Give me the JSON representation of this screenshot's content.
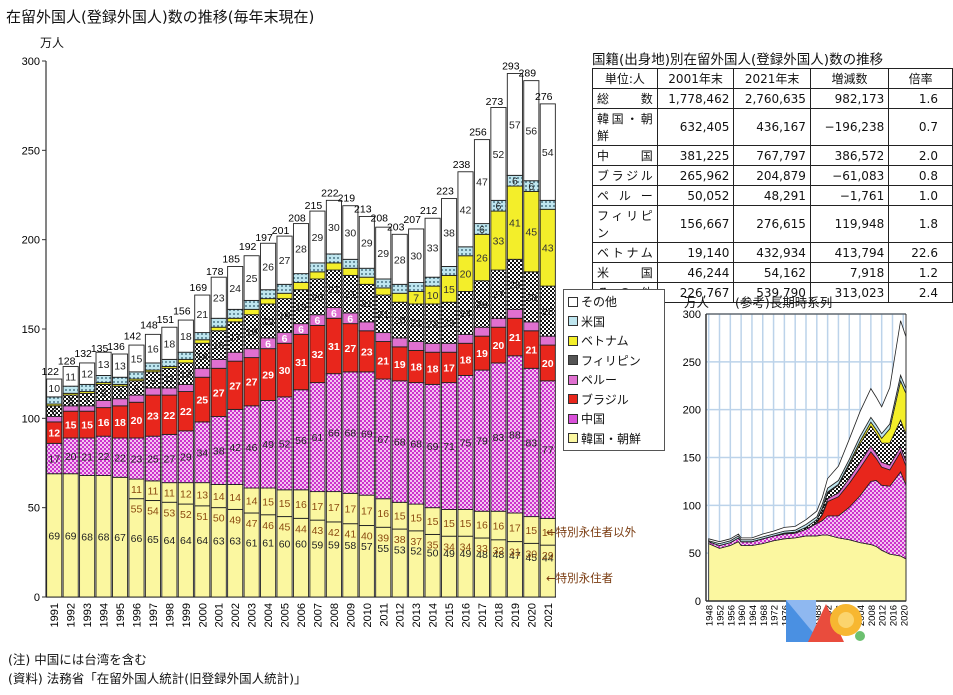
{
  "page": {
    "title": "在留外国人(登録外国人)数の推移(毎年末現在)",
    "unit": "万人",
    "notes": [
      "(注) 中国には台湾を含む",
      "(資料) 法務省「在留外国人統計(旧登録外国人統計)」"
    ],
    "annotations": {
      "special_other": "←特別永住者以外",
      "special": "←特別永住者"
    }
  },
  "table": {
    "title": "国籍(出身地)別在留外国人(登録外国人)数の推移",
    "headers": [
      "単位:人",
      "2001年末",
      "2021年末",
      "増減数",
      "倍率"
    ],
    "rows": [
      [
        "総数",
        "1,778,462",
        "2,760,635",
        "982,173",
        "1.6"
      ],
      [
        "韓国・朝鮮",
        "632,405",
        "436,167",
        "−196,238",
        "0.7"
      ],
      [
        "中国",
        "381,225",
        "767,797",
        "386,572",
        "2.0"
      ],
      [
        "ブラジル",
        "265,962",
        "204,879",
        "−61,083",
        "0.8"
      ],
      [
        "ペルー",
        "50,052",
        "48,291",
        "−1,761",
        "1.0"
      ],
      [
        "フィリピン",
        "156,667",
        "276,615",
        "119,948",
        "1.8"
      ],
      [
        "ベトナム",
        "19,140",
        "432,934",
        "413,794",
        "22.6"
      ],
      [
        "米国",
        "46,244",
        "54,162",
        "7,918",
        "1.2"
      ],
      [
        "その他",
        "226,767",
        "539,790",
        "313,023",
        "2.4"
      ]
    ]
  },
  "legend": {
    "items": [
      {
        "label": "その他",
        "key": "other"
      },
      {
        "label": "米国",
        "key": "usa"
      },
      {
        "label": "ベトナム",
        "key": "vietnam"
      },
      {
        "label": "フィリピン",
        "key": "philippines"
      },
      {
        "label": "ペルー",
        "key": "peru"
      },
      {
        "label": "ブラジル",
        "key": "brazil"
      },
      {
        "label": "中国",
        "key": "china"
      },
      {
        "label": "韓国・朝鮮",
        "key": "korea"
      }
    ]
  },
  "colors": {
    "korea": "#fbf7a0",
    "china": "#d94fd9",
    "brazil": "#e8261c",
    "peru": "#e070d0",
    "philippines": "#222222",
    "vietnam": "#f3ee2a",
    "usa": "#bfe6ef",
    "other": "#ffffff",
    "grid": "#bcd3ea"
  },
  "chart_data": [
    {
      "type": "bar",
      "stacked": true,
      "title": "在留外国人(登録外国人)数の推移(毎年末現在)",
      "ylabel": "万人",
      "ylim": [
        0,
        300
      ],
      "yticks": [
        0,
        50,
        100,
        150,
        200,
        250,
        300
      ],
      "categories": [
        "1991",
        "1992",
        "1993",
        "1994",
        "1995",
        "1996",
        "1997",
        "1998",
        "1999",
        "2000",
        "2001",
        "2002",
        "2003",
        "2004",
        "2005",
        "2006",
        "2007",
        "2008",
        "2009",
        "2010",
        "2011",
        "2012",
        "2013",
        "2014",
        "2015",
        "2016",
        "2017",
        "2018",
        "2019",
        "2020",
        "2021"
      ],
      "totals": [
        122,
        128,
        132,
        135,
        136,
        142,
        148,
        151,
        156,
        169,
        178,
        185,
        192,
        197,
        201,
        208,
        215,
        222,
        219,
        213,
        208,
        203,
        207,
        212,
        223,
        238,
        256,
        273,
        293,
        289,
        276
      ],
      "series": [
        {
          "name": "韓国・朝鮮",
          "key": "korea",
          "values": [
            69,
            69,
            68,
            68,
            67,
            66,
            65,
            64,
            64,
            64,
            63,
            63,
            61,
            61,
            60,
            60,
            59,
            59,
            58,
            57,
            55,
            53,
            52,
            50,
            49,
            49,
            48,
            48,
            47,
            45,
            44
          ]
        },
        {
          "name": "中国",
          "key": "china",
          "values": [
            17,
            20,
            21,
            22,
            22,
            23,
            25,
            27,
            29,
            34,
            38,
            42,
            46,
            49,
            52,
            56,
            61,
            66,
            68,
            69,
            67,
            68,
            68,
            69,
            71,
            75,
            79,
            83,
            88,
            83,
            77
          ]
        },
        {
          "name": "ブラジル",
          "key": "brazil",
          "values": [
            12,
            15,
            15,
            16,
            18,
            20,
            23,
            22,
            22,
            25,
            27,
            27,
            27,
            29,
            30,
            31,
            32,
            31,
            27,
            23,
            21,
            19,
            18,
            18,
            17,
            18,
            19,
            20,
            21,
            21,
            20
          ]
        },
        {
          "name": "ペルー",
          "key": "peru",
          "values": [
            3,
            3,
            3,
            4,
            4,
            4,
            4,
            4,
            4,
            5,
            5,
            5,
            5,
            6,
            6,
            6,
            6,
            6,
            6,
            5,
            5,
            5,
            5,
            5,
            5,
            5,
            5,
            5,
            5,
            5,
            5
          ]
        },
        {
          "name": "フィリピン",
          "key": "philippines",
          "values": [
            6,
            6,
            7,
            9,
            7,
            8,
            9,
            11,
            12,
            14,
            16,
            17,
            19,
            19,
            19,
            19,
            20,
            21,
            21,
            21,
            21,
            20,
            21,
            22,
            23,
            24,
            26,
            27,
            28,
            28,
            28
          ]
        },
        {
          "name": "ベトナム",
          "key": "vietnam",
          "values": [
            1,
            1,
            1,
            1,
            1,
            1,
            1,
            1,
            2,
            2,
            2,
            2,
            3,
            3,
            3,
            4,
            4,
            4,
            4,
            4,
            4,
            5,
            7,
            10,
            15,
            20,
            26,
            33,
            41,
            45,
            43
          ]
        },
        {
          "name": "米国",
          "key": "usa",
          "values": [
            4,
            4,
            4,
            4,
            4,
            4,
            4,
            4,
            4,
            4,
            5,
            5,
            5,
            5,
            5,
            5,
            5,
            5,
            5,
            5,
            5,
            5,
            5,
            5,
            5,
            5,
            6,
            6,
            6,
            6,
            5
          ]
        },
        {
          "name": "その他",
          "key": "other",
          "values": [
            10,
            11,
            12,
            13,
            13,
            15,
            16,
            18,
            18,
            21,
            23,
            24,
            25,
            26,
            27,
            28,
            29,
            30,
            30,
            29,
            29,
            28,
            30,
            33,
            38,
            42,
            47,
            52,
            57,
            56,
            54
          ]
        }
      ],
      "korea_split": {
        "special_permanent": [
          null,
          null,
          null,
          null,
          null,
          55,
          54,
          53,
          52,
          51,
          50,
          49,
          47,
          46,
          45,
          44,
          43,
          42,
          41,
          40,
          39,
          38,
          37,
          35,
          34,
          34,
          33,
          32,
          31,
          30,
          29
        ],
        "other_than_special": [
          null,
          null,
          null,
          null,
          null,
          11,
          11,
          11,
          12,
          13,
          14,
          14,
          14,
          15,
          15,
          16,
          17,
          17,
          17,
          17,
          16,
          15,
          15,
          15,
          15,
          15,
          16,
          16,
          17,
          15,
          14
        ]
      },
      "legend_position": "right"
    },
    {
      "type": "area",
      "stacked": true,
      "title": "(参考)長期時系列",
      "ylabel": "万人",
      "ylim": [
        0,
        300
      ],
      "yticks": [
        0,
        50,
        100,
        150,
        200,
        250,
        300
      ],
      "xticks": [
        "1948",
        "1952",
        "1956",
        "1960",
        "1964",
        "1968",
        "1972",
        "1976",
        "1980",
        "1984",
        "1988",
        "1992",
        "1996",
        "2000",
        "2004",
        "2008",
        "2012",
        "2016",
        "2020"
      ],
      "x": [
        1948,
        1952,
        1956,
        1959,
        1960,
        1964,
        1968,
        1972,
        1976,
        1980,
        1984,
        1988,
        1990,
        1992,
        1996,
        2000,
        2004,
        2008,
        2010,
        2012,
        2015,
        2019,
        2021
      ],
      "series": [
        {
          "name": "韓国・朝鮮",
          "key": "korea",
          "values": [
            60,
            55,
            58,
            62,
            58,
            58,
            60,
            63,
            65,
            66,
            68,
            68,
            69,
            69,
            66,
            64,
            61,
            59,
            57,
            53,
            49,
            47,
            44
          ]
        },
        {
          "name": "中国",
          "key": "china",
          "values": [
            2,
            3,
            3,
            4,
            4,
            4,
            5,
            5,
            5,
            5,
            7,
            13,
            15,
            20,
            23,
            34,
            49,
            66,
            69,
            68,
            71,
            88,
            77
          ]
        },
        {
          "name": "ブラジル",
          "key": "brazil",
          "values": [
            0,
            0,
            0,
            0,
            0,
            0,
            0,
            0,
            0,
            0,
            0,
            1,
            6,
            15,
            20,
            25,
            29,
            31,
            23,
            19,
            17,
            21,
            20
          ]
        },
        {
          "name": "ペルー",
          "key": "peru",
          "values": [
            0,
            0,
            0,
            0,
            0,
            0,
            0,
            0,
            0,
            0,
            0,
            0,
            1,
            3,
            4,
            5,
            6,
            6,
            5,
            5,
            5,
            5,
            5
          ]
        },
        {
          "name": "フィリピン",
          "key": "philippines",
          "values": [
            0,
            0,
            0,
            0,
            0,
            0,
            0,
            0,
            1,
            1,
            2,
            3,
            5,
            6,
            8,
            14,
            19,
            21,
            21,
            20,
            23,
            28,
            28
          ]
        },
        {
          "name": "ベトナム",
          "key": "vietnam",
          "values": [
            0,
            0,
            0,
            0,
            0,
            0,
            0,
            0,
            0,
            0,
            0,
            0,
            1,
            1,
            1,
            2,
            3,
            4,
            4,
            5,
            15,
            41,
            43
          ]
        },
        {
          "name": "米国",
          "key": "usa",
          "values": [
            1,
            2,
            2,
            2,
            2,
            2,
            2,
            2,
            2,
            2,
            3,
            3,
            4,
            4,
            4,
            4,
            5,
            5,
            5,
            5,
            5,
            6,
            5
          ]
        },
        {
          "name": "その他",
          "key": "other",
          "values": [
            2,
            2,
            2,
            2,
            2,
            2,
            3,
            3,
            4,
            4,
            5,
            6,
            7,
            10,
            15,
            21,
            26,
            30,
            29,
            28,
            38,
            57,
            54
          ]
        }
      ],
      "grid": true
    }
  ]
}
